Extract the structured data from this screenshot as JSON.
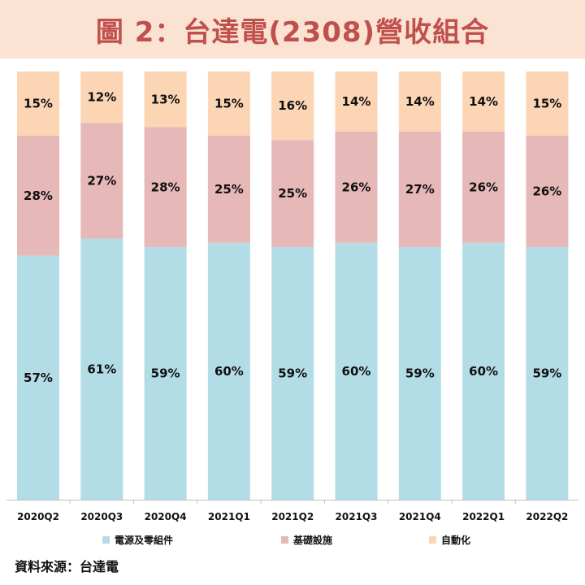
{
  "title": "圖 2：台達電(2308)營收組合",
  "source": "資料來源：台達電",
  "colors": {
    "title_bg": "#fbe3d4",
    "title_text": "#c0504d",
    "series": [
      "#b3dde6",
      "#e6b8b7",
      "#fcd5b4"
    ]
  },
  "legend": [
    {
      "label": "電源及零組件"
    },
    {
      "label": "基礎設施"
    },
    {
      "label": "自動化"
    }
  ],
  "chart_data": {
    "type": "bar",
    "stacked": true,
    "percent_labels": true,
    "categories": [
      "2020Q2",
      "2020Q3",
      "2020Q4",
      "2021Q1",
      "2021Q2",
      "2021Q3",
      "2021Q4",
      "2022Q1",
      "2022Q2"
    ],
    "series": [
      {
        "name": "電源及零組件",
        "values": [
          57,
          61,
          59,
          60,
          59,
          60,
          59,
          60,
          59
        ]
      },
      {
        "name": "基礎設施",
        "values": [
          28,
          27,
          28,
          25,
          25,
          26,
          27,
          26,
          26
        ]
      },
      {
        "name": "自動化",
        "values": [
          15,
          12,
          13,
          15,
          16,
          14,
          14,
          14,
          15
        ]
      }
    ],
    "ylim": [
      0,
      100
    ],
    "grid": false,
    "legend_position": "bottom"
  }
}
